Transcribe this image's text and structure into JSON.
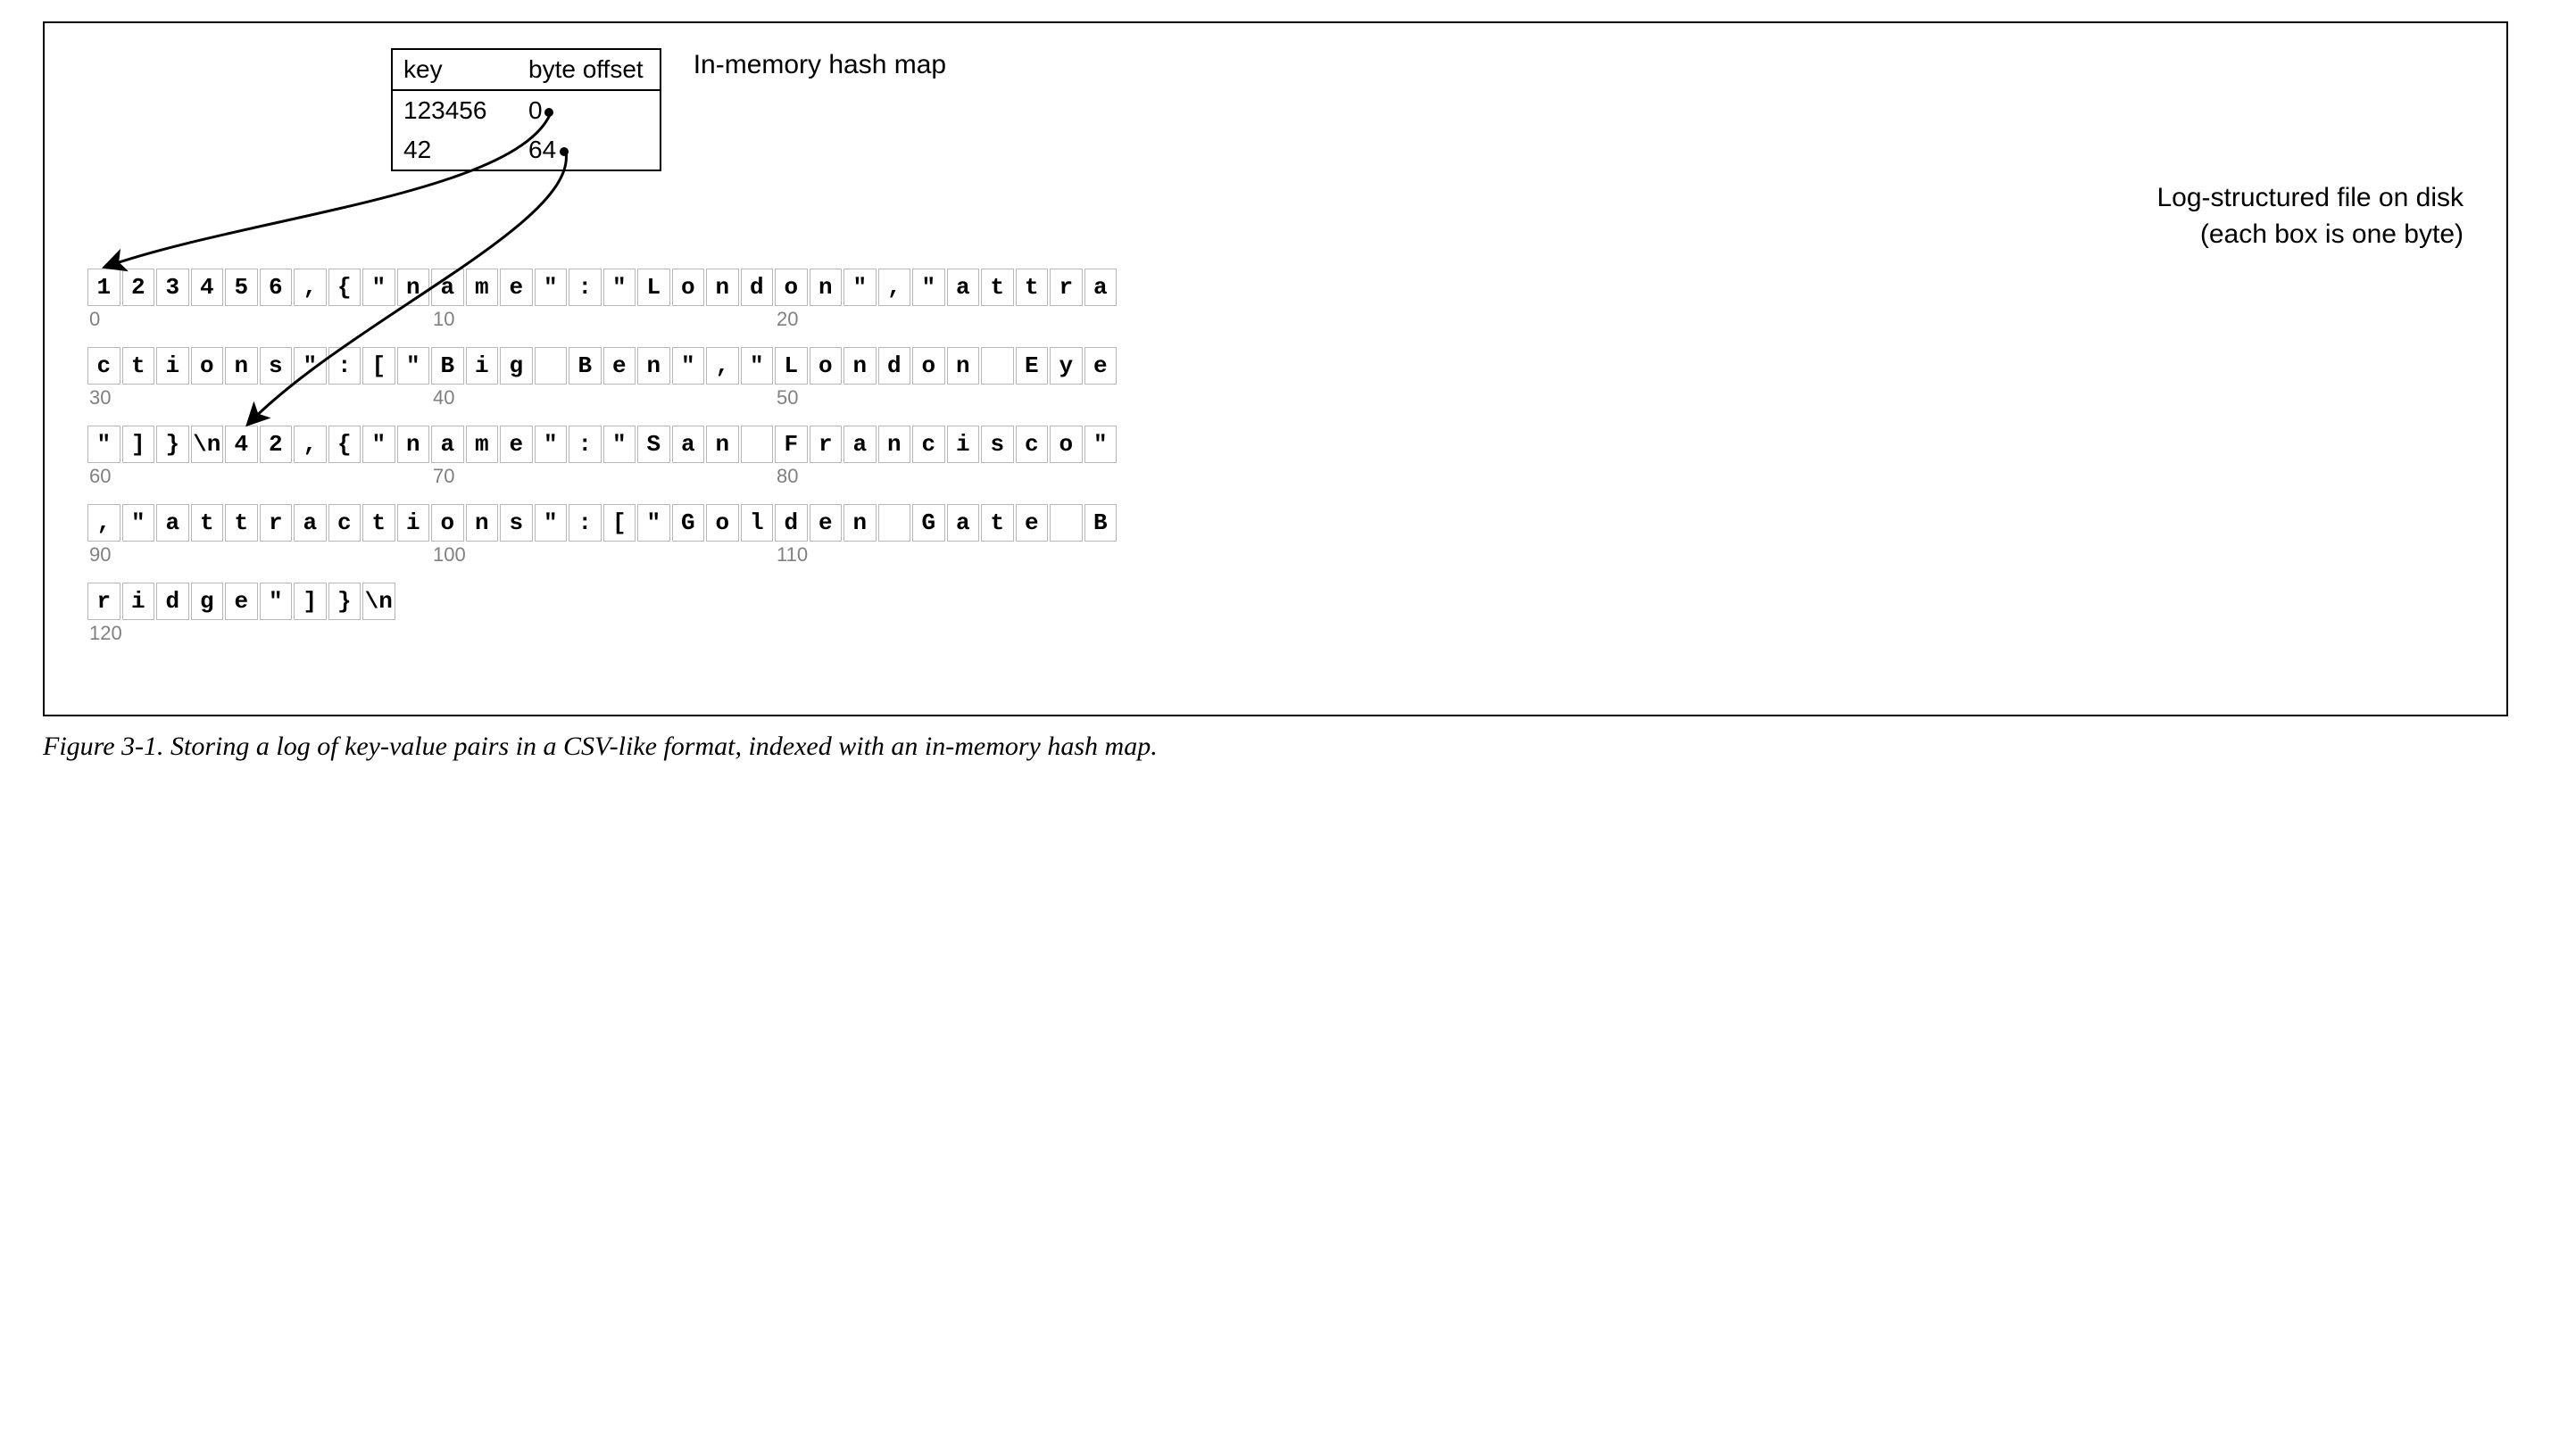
{
  "hashmap": {
    "label": "In-memory hash map",
    "header_key": "key",
    "header_offset": "byte offset",
    "rows": [
      {
        "key": "123456",
        "offset": "0"
      },
      {
        "key": "42",
        "offset": "64"
      }
    ]
  },
  "disk_label_line1": "Log-structured file on disk",
  "disk_label_line2": "(each box is one byte)",
  "bytes_per_row": 30,
  "offset_label_step": 10,
  "bytes": [
    "1",
    "2",
    "3",
    "4",
    "5",
    "6",
    ",",
    "{",
    "\"",
    "n",
    "a",
    "m",
    "e",
    "\"",
    ":",
    "\"",
    "L",
    "o",
    "n",
    "d",
    "o",
    "n",
    "\"",
    ",",
    "\"",
    "a",
    "t",
    "t",
    "r",
    "a",
    "c",
    "t",
    "i",
    "o",
    "n",
    "s",
    "\"",
    ":",
    "[",
    "\"",
    "B",
    "i",
    "g",
    " ",
    "B",
    "e",
    "n",
    "\"",
    ",",
    "\"",
    "L",
    "o",
    "n",
    "d",
    "o",
    "n",
    " ",
    "E",
    "y",
    "e",
    "\"",
    "]",
    "}",
    "\\n",
    "4",
    "2",
    ",",
    "{",
    "\"",
    "n",
    "a",
    "m",
    "e",
    "\"",
    ":",
    "\"",
    "S",
    "a",
    "n",
    " ",
    "F",
    "r",
    "a",
    "n",
    "c",
    "i",
    "s",
    "c",
    "o",
    "\"",
    ",",
    "\"",
    "a",
    "t",
    "t",
    "r",
    "a",
    "c",
    "t",
    "i",
    "o",
    "n",
    "s",
    "\"",
    ":",
    "[",
    "\"",
    "G",
    "o",
    "l",
    "d",
    "e",
    "n",
    " ",
    "G",
    "a",
    "t",
    "e",
    " ",
    "B",
    "r",
    "i",
    "d",
    "g",
    "e",
    "\"",
    "]",
    "}",
    "\\n"
  ],
  "caption": "Figure 3-1. Storing a log of key-value pairs in a CSV-like format, indexed with an in-memory hash map.",
  "style": {
    "byte_box": {
      "w": 36.5,
      "h": 42,
      "gap": 2,
      "border_color": "#b8b8b8"
    },
    "offset_color": "#808080",
    "fg": "#000000",
    "bg": "#ffffff",
    "mono_font": "Courier New",
    "sans_font": "Helvetica Neue",
    "serif_font": "Georgia",
    "arrow_stroke_width": 3
  },
  "arrows": [
    {
      "from": "offset0_dot",
      "to": "byte0_target",
      "desc": "123456→0"
    },
    {
      "from": "offset1_dot",
      "to": "byte64_target",
      "desc": "42→64"
    }
  ]
}
